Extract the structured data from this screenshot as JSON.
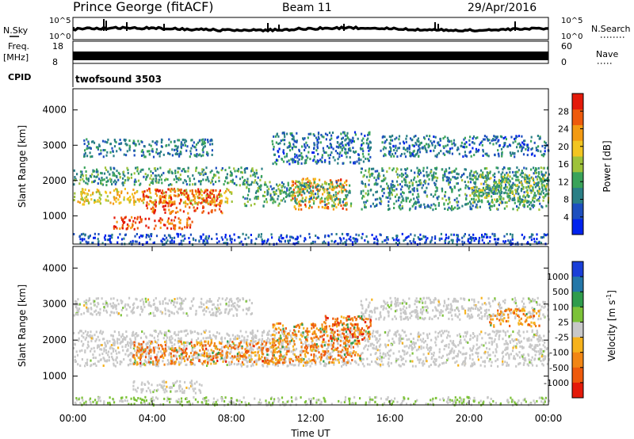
{
  "header": {
    "station": "Prince George (fitACF)",
    "beam": "Beam 11",
    "date": "29/Apr/2016"
  },
  "top_panels": {
    "nsky_label": "N.Sky",
    "nsky_ticks": [
      "10^5",
      "10^0"
    ],
    "nsearch_label": "N.Search",
    "nsearch_ticks": [
      "10^5",
      "10^0"
    ],
    "freq_label": "Freq.",
    "freq_unit": "[MHz]",
    "freq_ticks": [
      "18",
      "8"
    ],
    "nave_label": "Nave",
    "nave_ticks": [
      "60",
      "0"
    ],
    "cpid_label": "CPID",
    "cpid_value": "twofsound 3503"
  },
  "chart_data": [
    {
      "type": "heatmap",
      "name": "power",
      "ylabel": "Slant Range [km]",
      "ylim": [
        200,
        4600
      ],
      "yticks": [
        1000,
        2000,
        3000,
        4000
      ],
      "xlim": [
        0,
        24
      ],
      "colorbar": {
        "label": "Power [dB]",
        "range": [
          0,
          32
        ],
        "ticks": [
          4,
          8,
          12,
          16,
          20,
          24,
          28
        ],
        "colors": [
          "#0022ee",
          "#1d4fbf",
          "#2a7f86",
          "#3aa35a",
          "#9ec23a",
          "#f2c520",
          "#f39a12",
          "#ee5a0c",
          "#e41a0a"
        ]
      },
      "echo_regions": [
        {
          "label": "band",
          "t0": 0.0,
          "t1": 8.0,
          "r0": 1350,
          "r1": 1800,
          "level": 0.62
        },
        {
          "label": "band",
          "t0": 0.0,
          "t1": 9.5,
          "r0": 1900,
          "r1": 2400,
          "level": 0.35
        },
        {
          "label": "band",
          "t0": 0.5,
          "t1": 7.0,
          "r0": 2700,
          "r1": 3200,
          "level": 0.25
        },
        {
          "label": "patch",
          "t0": 3.5,
          "t1": 7.5,
          "r0": 1100,
          "r1": 1800,
          "level": 0.9
        },
        {
          "label": "patch",
          "t0": 2.0,
          "t1": 6.0,
          "r0": 650,
          "r1": 1000,
          "level": 0.92
        },
        {
          "label": "patch",
          "t0": 11.0,
          "t1": 13.8,
          "r0": 1200,
          "r1": 2100,
          "level": 0.78
        },
        {
          "label": "band",
          "t0": 8.5,
          "t1": 14.0,
          "r0": 1300,
          "r1": 2000,
          "level": 0.35
        },
        {
          "label": "patch",
          "t0": 10.0,
          "t1": 15.0,
          "r0": 2500,
          "r1": 3400,
          "level": 0.22
        },
        {
          "label": "band",
          "t0": 14.5,
          "t1": 24.0,
          "r0": 1200,
          "r1": 2400,
          "level": 0.3
        },
        {
          "label": "band",
          "t0": 15.5,
          "t1": 24.0,
          "r0": 2700,
          "r1": 3300,
          "level": 0.2
        },
        {
          "label": "band",
          "t0": 20.0,
          "t1": 24.0,
          "r0": 1400,
          "r1": 2200,
          "level": 0.42
        },
        {
          "label": "ground",
          "t0": 0.0,
          "t1": 24.0,
          "r0": 220,
          "r1": 520,
          "level": 0.1
        }
      ]
    },
    {
      "type": "heatmap",
      "name": "velocity",
      "ylabel": "Slant Range [km]",
      "ylim": [
        200,
        4600
      ],
      "yticks": [
        1000,
        2000,
        3000,
        4000
      ],
      "xlim": [
        0,
        24
      ],
      "xticks": [
        "00:00",
        "04:00",
        "08:00",
        "12:00",
        "16:00",
        "20:00",
        "00:00"
      ],
      "xlabel": "Time UT",
      "colorbar": {
        "label": "Velocity [m s",
        "label_sup": "-1",
        "label_end": "]",
        "ticks": [
          "1000",
          "500",
          "100",
          "25",
          "-25",
          "-100",
          "-500",
          "-1000"
        ],
        "colors": [
          "#1a3fd8",
          "#2477a8",
          "#2f9c4c",
          "#7cc238",
          "#c8c8c8",
          "#f6b21c",
          "#f28614",
          "#ee5a0c",
          "#e41a0a"
        ]
      },
      "echo_regions": [
        {
          "label": "ground",
          "t0": 0.0,
          "t1": 24.0,
          "r0": 1300,
          "r1": 2300,
          "level": 0.0
        },
        {
          "label": "ground",
          "t0": 0.0,
          "t1": 9.0,
          "r0": 2700,
          "r1": 3200,
          "level": 0.0
        },
        {
          "label": "ground",
          "t0": 14.5,
          "t1": 24.0,
          "r0": 2600,
          "r1": 3200,
          "level": 0.0
        },
        {
          "label": "ground",
          "t0": 3.0,
          "t1": 6.5,
          "r0": 550,
          "r1": 900,
          "level": 0.0
        },
        {
          "label": "ionosphere",
          "t0": 3.0,
          "t1": 10.5,
          "r0": 1350,
          "r1": 2000,
          "level": -0.6
        },
        {
          "label": "ionosphere",
          "t0": 10.0,
          "t1": 14.5,
          "r0": 1400,
          "r1": 2500,
          "level": -0.55
        },
        {
          "label": "ionosphere",
          "t0": 12.5,
          "t1": 15.0,
          "r0": 2000,
          "r1": 2700,
          "level": -0.7
        },
        {
          "label": "ionosphere",
          "t0": 21.0,
          "t1": 23.5,
          "r0": 2400,
          "r1": 2900,
          "level": -0.5
        },
        {
          "label": "ground",
          "t0": 0.0,
          "t1": 24.0,
          "r0": 220,
          "r1": 450,
          "level": 0.3
        }
      ]
    }
  ]
}
